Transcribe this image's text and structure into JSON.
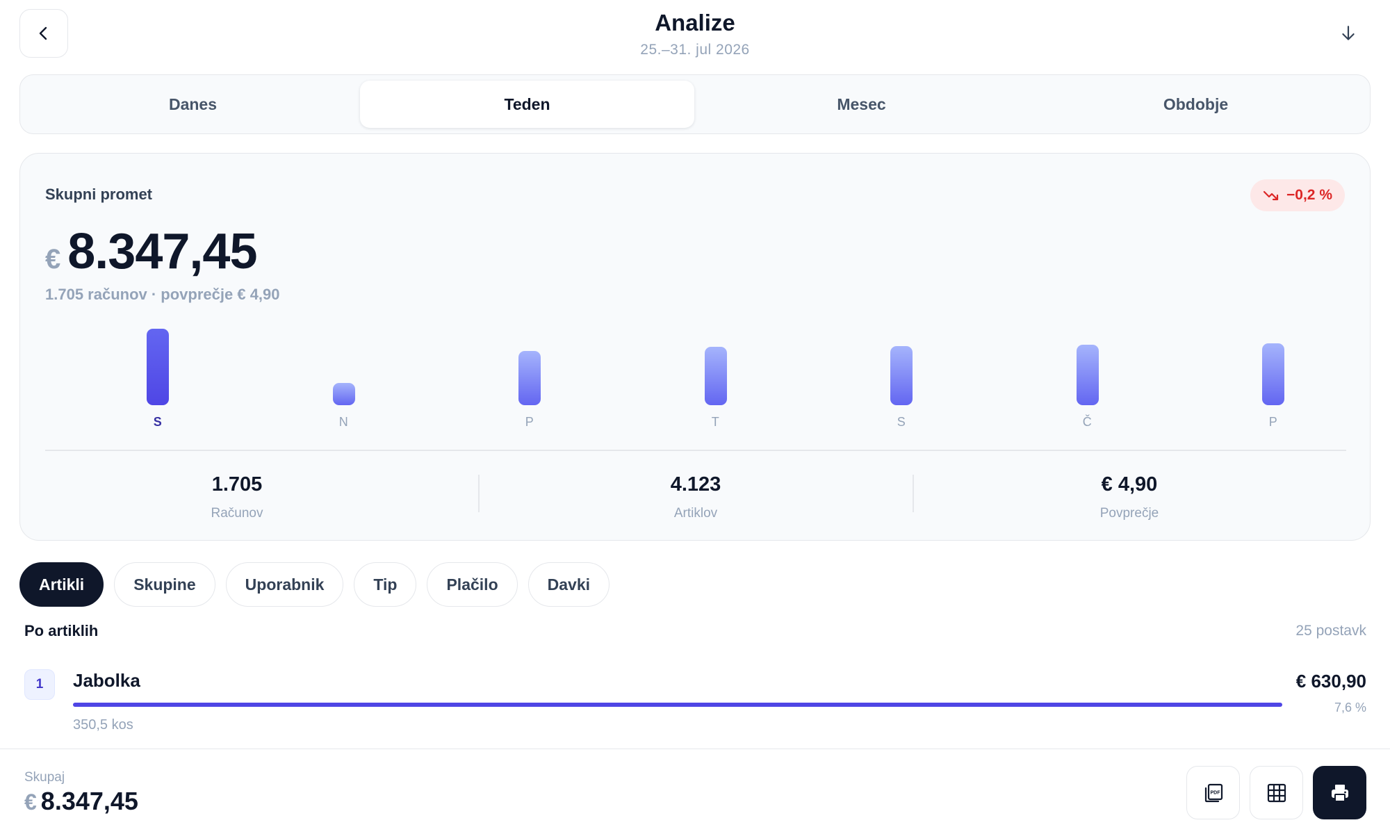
{
  "header": {
    "title": "Analize",
    "subtitle": "25.–31. jul 2026",
    "back_icon": "chevron-left-icon",
    "download_icon": "arrow-down-icon"
  },
  "periods": [
    {
      "label": "Danes",
      "active": false
    },
    {
      "label": "Teden",
      "active": true
    },
    {
      "label": "Mesec",
      "active": false
    },
    {
      "label": "Obdobje",
      "active": false
    }
  ],
  "summary": {
    "label": "Skupni promet",
    "trend": "−0,2 %",
    "trend_color": "#dc2626",
    "currency": "€",
    "total": "8.347,45",
    "meta": "1.705 računov · povprečje € 4,90"
  },
  "chart_data": {
    "type": "bar",
    "categories": [
      "S",
      "N",
      "P",
      "T",
      "S",
      "Č",
      "P"
    ],
    "values": [
      1.0,
      0.29,
      0.71,
      0.76,
      0.77,
      0.79,
      0.81
    ],
    "active_index": 0,
    "accent": "#4f46e5"
  },
  "stats": [
    {
      "value": "1.705",
      "label": "Računov"
    },
    {
      "value": "4.123",
      "label": "Artiklov"
    },
    {
      "value": "€ 4,90",
      "label": "Povprečje"
    }
  ],
  "tabs": [
    {
      "label": "Artikli",
      "active": true
    },
    {
      "label": "Skupine",
      "active": false
    },
    {
      "label": "Uporabnik",
      "active": false
    },
    {
      "label": "Tip",
      "active": false
    },
    {
      "label": "Plačilo",
      "active": false
    },
    {
      "label": "Davki",
      "active": false
    }
  ],
  "section": {
    "title": "Po artiklih",
    "count": "25 postavk"
  },
  "items": [
    {
      "rank": "1",
      "name": "Jabolka",
      "value": "€ 630,90",
      "quantity": "350,5 kos",
      "percent": "7,6 %",
      "share": 1.0
    }
  ],
  "footer": {
    "label": "Skupaj",
    "currency": "€",
    "total": "8.347,45",
    "pdf_icon": "pdf-icon",
    "grid_icon": "table-icon",
    "print_icon": "printer-icon"
  }
}
